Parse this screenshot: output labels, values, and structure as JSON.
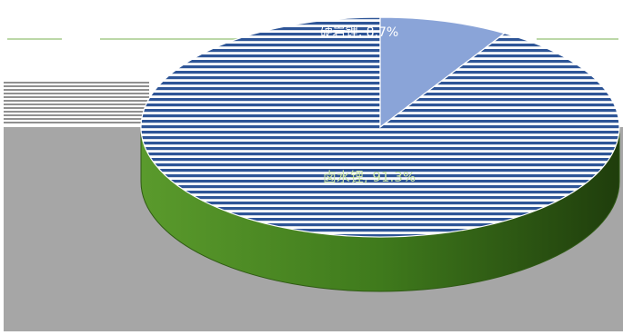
{
  "chart_data": {
    "type": "pie",
    "style": "3d",
    "categories": [
      "卤水锂",
      "硬岩锂"
    ],
    "values": [
      91.3,
      8.7
    ],
    "data_labels": [
      "卤水锂, 91.3%",
      "硬岩锂, 8.7%"
    ],
    "colors": {
      "main": "#2e5597",
      "secondary": "#8aa4d8",
      "side": "#4c8a24",
      "label_main": "#c9e3a6",
      "label_secondary": "#ffffff"
    },
    "title": "",
    "legend": "none"
  }
}
